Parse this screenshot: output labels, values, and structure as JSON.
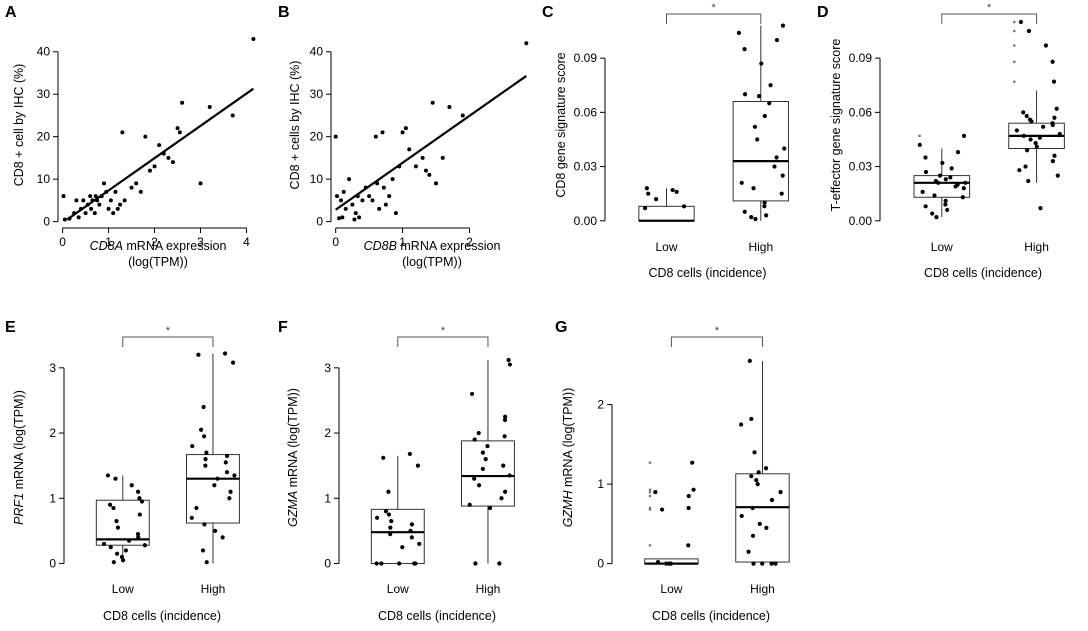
{
  "chart_data": [
    {
      "id": "A",
      "type": "scatter",
      "letter": "A",
      "xlabel_italic": "CD8A",
      "xlabel_rest": " mRNA expression",
      "xlabel_line2": "(log(TPM))",
      "ylabel": "CD8 + cell by IHC (%)",
      "xlim": [
        -0.1,
        4.25
      ],
      "ylim": [
        -1.5,
        47
      ],
      "xticks": [
        0,
        1,
        2,
        3,
        4
      ],
      "yticks": [
        0,
        10,
        20,
        30,
        40
      ],
      "fit": {
        "x0": 0.1,
        "y0": 0.5,
        "x1": 4.15,
        "y1": 31.3
      },
      "points": [
        [
          0.02,
          6
        ],
        [
          0.05,
          0.5
        ],
        [
          0.15,
          0.7
        ],
        [
          0.25,
          2
        ],
        [
          0.3,
          5
        ],
        [
          0.35,
          1
        ],
        [
          0.4,
          3
        ],
        [
          0.45,
          5
        ],
        [
          0.5,
          2
        ],
        [
          0.55,
          4
        ],
        [
          0.6,
          6
        ],
        [
          0.62,
          3
        ],
        [
          0.65,
          5
        ],
        [
          0.7,
          2
        ],
        [
          0.72,
          6
        ],
        [
          0.75,
          5
        ],
        [
          0.8,
          4
        ],
        [
          0.85,
          6
        ],
        [
          0.9,
          9
        ],
        [
          0.95,
          7
        ],
        [
          1.0,
          3
        ],
        [
          1.05,
          5
        ],
        [
          1.1,
          2
        ],
        [
          1.15,
          7
        ],
        [
          1.2,
          3
        ],
        [
          1.25,
          4
        ],
        [
          1.3,
          21
        ],
        [
          1.35,
          5
        ],
        [
          1.5,
          8
        ],
        [
          1.6,
          9
        ],
        [
          1.7,
          7
        ],
        [
          1.8,
          20
        ],
        [
          1.9,
          12
        ],
        [
          2.0,
          13
        ],
        [
          2.1,
          18
        ],
        [
          2.2,
          16
        ],
        [
          2.3,
          15
        ],
        [
          2.4,
          14
        ],
        [
          2.5,
          22
        ],
        [
          2.55,
          21
        ],
        [
          2.6,
          28
        ],
        [
          3.0,
          9
        ],
        [
          3.2,
          27
        ],
        [
          3.7,
          25
        ],
        [
          4.15,
          43
        ]
      ]
    },
    {
      "id": "B",
      "type": "scatter",
      "letter": "B",
      "xlabel_italic": "CD8B",
      "xlabel_rest": " mRNA expression",
      "xlabel_line2": "(log(TPM))",
      "ylabel": "CD8 + cells by IHC (%)",
      "xlim": [
        -0.07,
        2.95
      ],
      "ylim": [
        -1.5,
        47
      ],
      "xticks": [
        0,
        1,
        2
      ],
      "yticks": [
        0,
        10,
        20,
        30,
        40
      ],
      "fit": {
        "x0": 0.0,
        "y0": 2.8,
        "x1": 2.85,
        "y1": 34.3
      },
      "points": [
        [
          0.0,
          20
        ],
        [
          0.02,
          6
        ],
        [
          0.05,
          0.8
        ],
        [
          0.08,
          5
        ],
        [
          0.1,
          1
        ],
        [
          0.12,
          7
        ],
        [
          0.15,
          3
        ],
        [
          0.2,
          10
        ],
        [
          0.25,
          4
        ],
        [
          0.28,
          0.5
        ],
        [
          0.3,
          2
        ],
        [
          0.33,
          6
        ],
        [
          0.35,
          1
        ],
        [
          0.4,
          5
        ],
        [
          0.45,
          8
        ],
        [
          0.5,
          6
        ],
        [
          0.55,
          5
        ],
        [
          0.6,
          20
        ],
        [
          0.62,
          9
        ],
        [
          0.65,
          3
        ],
        [
          0.7,
          21
        ],
        [
          0.72,
          8
        ],
        [
          0.75,
          4
        ],
        [
          0.8,
          6
        ],
        [
          0.85,
          10
        ],
        [
          0.9,
          2
        ],
        [
          0.95,
          13
        ],
        [
          1.0,
          21
        ],
        [
          1.05,
          22
        ],
        [
          1.1,
          17
        ],
        [
          1.2,
          13
        ],
        [
          1.3,
          15
        ],
        [
          1.35,
          12
        ],
        [
          1.4,
          11
        ],
        [
          1.45,
          28
        ],
        [
          1.5,
          9
        ],
        [
          1.6,
          15
        ],
        [
          1.7,
          27
        ],
        [
          1.9,
          25
        ],
        [
          2.85,
          42
        ]
      ]
    },
    {
      "id": "C",
      "type": "box",
      "letter": "C",
      "ylabel": "CD8 gene signature score",
      "xlabel": "CD8 cells (incidence)",
      "categories": [
        "Low",
        "High"
      ],
      "ylim": [
        -0.004,
        0.11
      ],
      "yticks": [
        0,
        0.03,
        0.06,
        0.09
      ],
      "ytick_labels": [
        "0.00",
        "0.03",
        "0.06",
        "0.09"
      ],
      "significance": "*",
      "boxes": [
        {
          "q1": 0.0,
          "median": 0.0,
          "q3": 0.008,
          "lo": 0.0,
          "hi": 0.018,
          "outliers": []
        },
        {
          "q1": 0.011,
          "median": 0.033,
          "q3": 0.066,
          "lo": 0.0,
          "hi": 0.108,
          "outliers": []
        }
      ],
      "points": [
        [
          0.017,
          0.018,
          0.016,
          0.012,
          0.015,
          0.008,
          0.007
        ],
        [
          0.108,
          0.104,
          0.1,
          0.095,
          0.087,
          0.075,
          0.07,
          0.069,
          0.065,
          0.058,
          0.052,
          0.045,
          0.04,
          0.035,
          0.03,
          0.025,
          0.021,
          0.018,
          0.015,
          0.01,
          0.008,
          0.005,
          0.003,
          0.002,
          0.001
        ]
      ]
    },
    {
      "id": "D",
      "type": "box",
      "letter": "D",
      "ylabel": "T-effector gene signature score",
      "xlabel": "CD8 cells (incidence)",
      "categories": [
        "Low",
        "High"
      ],
      "ylim": [
        -0.004,
        0.11
      ],
      "yticks": [
        0,
        0.03,
        0.06,
        0.09
      ],
      "ytick_labels": [
        "0.00",
        "0.03",
        "0.06",
        "0.09"
      ],
      "significance": "*",
      "boxes": [
        {
          "q1": 0.013,
          "median": 0.021,
          "q3": 0.025,
          "lo": 0.002,
          "hi": 0.04,
          "outliers": [
            0.047
          ]
        },
        {
          "q1": 0.04,
          "median": 0.047,
          "q3": 0.054,
          "lo": 0.021,
          "hi": 0.072,
          "outliers": [
            0.11,
            0.105,
            0.097,
            0.088,
            0.077
          ]
        }
      ],
      "points": [
        [
          0.047,
          0.042,
          0.038,
          0.035,
          0.032,
          0.029,
          0.027,
          0.025,
          0.024,
          0.023,
          0.022,
          0.021,
          0.021,
          0.02,
          0.019,
          0.018,
          0.016,
          0.014,
          0.013,
          0.011,
          0.009,
          0.008,
          0.006,
          0.004,
          0.002
        ],
        [
          0.11,
          0.105,
          0.097,
          0.088,
          0.077,
          0.062,
          0.06,
          0.058,
          0.057,
          0.056,
          0.055,
          0.054,
          0.053,
          0.052,
          0.05,
          0.048,
          0.047,
          0.046,
          0.045,
          0.043,
          0.041,
          0.039,
          0.036,
          0.033,
          0.03,
          0.028,
          0.025,
          0.022,
          0.007
        ]
      ]
    },
    {
      "id": "E",
      "type": "box",
      "letter": "E",
      "ylabel_italic": "PRF1",
      "ylabel_rest": " mRNA (log(TPM))",
      "xlabel": "CD8 cells (incidence)",
      "categories": [
        "Low",
        "High"
      ],
      "ylim": [
        -0.1,
        3.35
      ],
      "yticks": [
        0,
        1,
        2,
        3
      ],
      "ytick_labels": [
        "0",
        "1",
        "2",
        "3"
      ],
      "significance": "*",
      "boxes": [
        {
          "q1": 0.28,
          "median": 0.37,
          "q3": 0.97,
          "lo": 0.02,
          "hi": 1.35,
          "outliers": []
        },
        {
          "q1": 0.62,
          "median": 1.3,
          "q3": 1.67,
          "lo": 0.0,
          "hi": 3.22,
          "outliers": []
        }
      ],
      "points": [
        [
          1.35,
          1.3,
          1.2,
          1.1,
          1.0,
          0.95,
          0.9,
          0.85,
          0.75,
          0.65,
          0.55,
          0.45,
          0.4,
          0.35,
          0.3,
          0.28,
          0.25,
          0.2,
          0.15,
          0.1,
          0.05,
          0.02
        ],
        [
          3.22,
          3.2,
          3.08,
          2.4,
          2.05,
          1.95,
          1.8,
          1.7,
          1.65,
          1.6,
          1.55,
          1.5,
          1.4,
          1.35,
          1.3,
          1.2,
          1.1,
          1.0,
          0.85,
          0.7,
          0.6,
          0.5,
          0.4,
          0.2,
          0.02
        ]
      ]
    },
    {
      "id": "F",
      "type": "box",
      "letter": "F",
      "ylabel_italic": "GZMA",
      "ylabel_rest": " mRNA (log(TPM))",
      "xlabel": "CD8 cells (incidence)",
      "categories": [
        "Low",
        "High"
      ],
      "ylim": [
        -0.1,
        3.35
      ],
      "yticks": [
        0,
        1,
        2,
        3
      ],
      "ytick_labels": [
        "0",
        "1",
        "2",
        "3"
      ],
      "significance": "*",
      "boxes": [
        {
          "q1": 0.0,
          "median": 0.48,
          "q3": 0.83,
          "lo": 0.0,
          "hi": 1.65,
          "outliers": []
        },
        {
          "q1": 0.88,
          "median": 1.34,
          "q3": 1.88,
          "lo": 0.0,
          "hi": 3.12,
          "outliers": []
        }
      ],
      "points": [
        [
          1.68,
          1.62,
          1.5,
          1.1,
          0.8,
          0.75,
          0.7,
          0.65,
          0.6,
          0.55,
          0.5,
          0.45,
          0.4,
          0.3,
          0.25,
          0.0,
          0.0,
          0.0,
          0.0,
          0.0
        ],
        [
          3.12,
          3.05,
          2.6,
          2.25,
          2.2,
          2.0,
          1.95,
          1.9,
          1.8,
          1.7,
          1.6,
          1.5,
          1.45,
          1.35,
          1.3,
          1.2,
          1.1,
          1.0,
          0.9,
          0.85,
          0.0,
          0.0
        ]
      ]
    },
    {
      "id": "G",
      "type": "box",
      "letter": "G",
      "ylabel_italic": "GZMH",
      "ylabel_rest": " mRNA (log(TPM))",
      "xlabel": "CD8 cells (incidence)",
      "categories": [
        "Low",
        "High"
      ],
      "ylim": [
        -0.08,
        2.75
      ],
      "yticks": [
        0,
        1,
        2
      ],
      "ytick_labels": [
        "0",
        "1",
        "2"
      ],
      "significance": "*",
      "boxes": [
        {
          "q1": 0.0,
          "median": 0.0,
          "q3": 0.06,
          "lo": 0.0,
          "hi": 0.06,
          "outliers": [
            1.27,
            0.93,
            0.9,
            0.85,
            0.7,
            0.68,
            0.23
          ]
        },
        {
          "q1": 0.02,
          "median": 0.71,
          "q3": 1.13,
          "lo": 0.0,
          "hi": 2.55,
          "outliers": []
        }
      ],
      "points": [
        [
          1.27,
          0.93,
          0.9,
          0.85,
          0.7,
          0.68,
          0.23,
          0.02,
          0.0,
          0.0,
          0.0
        ],
        [
          2.55,
          1.82,
          1.75,
          1.4,
          1.2,
          1.15,
          1.1,
          1.05,
          1.0,
          0.9,
          0.8,
          0.7,
          0.6,
          0.5,
          0.45,
          0.35,
          0.15,
          0.0,
          0.0,
          0.0,
          0.0
        ]
      ]
    }
  ]
}
